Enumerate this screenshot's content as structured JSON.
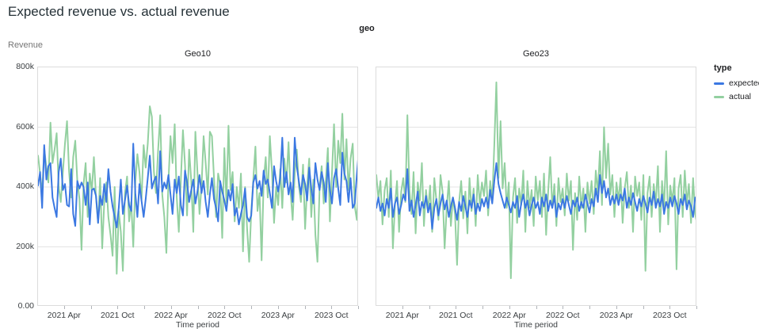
{
  "header": {
    "title": "Expected revenue vs. actual revenue"
  },
  "chart_data": {
    "type": "line",
    "title": "Expected revenue vs. actual revenue",
    "facet_field": "geo",
    "x": {
      "label": "Time period",
      "start": "2021 Jan",
      "end": "2023 Dec",
      "freq": "weekly",
      "n_points": 156,
      "tick_labels": [
        "2021 Apr",
        "2021 Oct",
        "2022 Apr",
        "2022 Oct",
        "2023 Apr",
        "2023 Oct"
      ]
    },
    "y": {
      "label": "Revenue",
      "unit": "thousands",
      "ylim": [
        0,
        800
      ],
      "tick_values": [
        0,
        200,
        400,
        600,
        800
      ],
      "tick_labels": [
        "0.00",
        "200k",
        "400k",
        "600k",
        "800k"
      ],
      "grid": true
    },
    "legend": {
      "title": "type",
      "position": "right",
      "entries": [
        {
          "label": "expected",
          "color": "#3b78e2"
        },
        {
          "label": "actual",
          "color": "#93d0a0"
        }
      ]
    },
    "facets": [
      {
        "name": "Geo10",
        "series": [
          {
            "name": "expected",
            "color": "#3b78e2",
            "values": [
              405,
              450,
              330,
              540,
              425,
              470,
              480,
              365,
              330,
              300,
              450,
              495,
              390,
              410,
              340,
              335,
              460,
              310,
              270,
              420,
              395,
              415,
              400,
              340,
              415,
              275,
              390,
              395,
              370,
              280,
              370,
              340,
              410,
              350,
              460,
              385,
              335,
              300,
              265,
              330,
              425,
              310,
              355,
              405,
              340,
              320,
              545,
              380,
              300,
              410,
              355,
              300,
              360,
              430,
              505,
              395,
              420,
              435,
              345,
              520,
              385,
              415,
              395,
              440,
              375,
              310,
              425,
              380,
              435,
              340,
              305,
              455,
              415,
              350,
              390,
              425,
              345,
              385,
              440,
              380,
              420,
              350,
              300,
              375,
              430,
              360,
              330,
              285,
              420,
              385,
              355,
              320,
              390,
              355,
              410,
              305,
              330,
              275,
              310,
              340,
              395,
              300,
              285,
              305,
              415,
              440,
              395,
              420,
              370,
              455,
              410,
              425,
              380,
              330,
              470,
              420,
              385,
              430,
              565,
              400,
              450,
              375,
              415,
              350,
              565,
              470,
              420,
              375,
              440,
              410,
              355,
              465,
              395,
              345,
              480,
              425,
              390,
              450,
              415,
              350,
              480,
              390,
              345,
              430,
              460,
              395,
              340,
              515,
              445,
              420,
              350,
              430,
              330,
              345,
              440,
              525
            ]
          },
          {
            "name": "actual",
            "color": "#93d0a0",
            "values": [
              505,
              445,
              375,
              530,
              465,
              415,
              615,
              480,
              525,
              580,
              400,
              350,
              450,
              545,
              620,
              450,
              365,
              500,
              555,
              420,
              360,
              190,
              410,
              480,
              300,
              445,
              385,
              500,
              365,
              280,
              430,
              195,
              350,
              415,
              300,
              240,
              170,
              400,
              110,
              320,
              250,
              120,
              380,
              435,
              285,
              350,
              200,
              415,
              510,
              450,
              355,
              540,
              465,
              545,
              670,
              635,
              450,
              380,
              520,
              640,
              375,
              300,
              180,
              420,
              570,
              480,
              610,
              365,
              250,
              425,
              590,
              475,
              305,
              525,
              420,
              250,
              585,
              450,
              310,
              405,
              570,
              480,
              375,
              585,
              570,
              430,
              300,
              445,
              410,
              230,
              530,
              345,
              605,
              390,
              450,
              285,
              400,
              330,
              445,
              185,
              400,
              260,
              150,
              315,
              425,
              535,
              320,
              380,
              155,
              420,
              500,
              365,
              570,
              450,
              280,
              400,
              340,
              460,
              330,
              495,
              415,
              550,
              380,
              290,
              445,
              525,
              405,
              350,
              475,
              260,
              405,
              495,
              300,
              425,
              240,
              150,
              400,
              470,
              345,
              420,
              530,
              285,
              445,
              610,
              400,
              555,
              480,
              645,
              425,
              560,
              390,
              495,
              545,
              335,
              290,
              435
            ]
          }
        ]
      },
      {
        "name": "Geo23",
        "series": [
          {
            "name": "expected",
            "color": "#3b78e2",
            "values": [
              330,
              365,
              320,
              345,
              305,
              360,
              330,
              395,
              300,
              345,
              365,
              310,
              340,
              375,
              355,
              460,
              320,
              355,
              300,
              340,
              385,
              305,
              350,
              330,
              370,
              315,
              345,
              260,
              330,
              360,
              305,
              345,
              375,
              325,
              355,
              300,
              335,
              365,
              330,
              290,
              350,
              320,
              370,
              335,
              300,
              355,
              330,
              375,
              310,
              345,
              320,
              360,
              335,
              365,
              330,
              390,
              345,
              420,
              480,
              410,
              380,
              355,
              330,
              365,
              340,
              315,
              350,
              330,
              370,
              300,
              345,
              375,
              330,
              355,
              305,
              340,
              365,
              330,
              350,
              310,
              365,
              335,
              375,
              320,
              355,
              330,
              370,
              300,
              345,
              325,
              360,
              330,
              370,
              340,
              310,
              355,
              335,
              365,
              320,
              350,
              330,
              375,
              345,
              315,
              360,
              335,
              395,
              350,
              440,
              380,
              420,
              365,
              395,
              340,
              370,
              345,
              375,
              340,
              375,
              355,
              395,
              330,
              365,
              340,
              380,
              350,
              320,
              360,
              335,
              370,
              345,
              315,
              365,
              340,
              385,
              330,
              360,
              335,
              375,
              310,
              350,
              330,
              365,
              335,
              370,
              345,
              310,
              360,
              340,
              375,
              325,
              355,
              335,
              300,
              365,
              350
            ]
          },
          {
            "name": "actual",
            "color": "#93d0a0",
            "values": [
              440,
              360,
              420,
              275,
              390,
              430,
              300,
              455,
              195,
              340,
              420,
              250,
              385,
              430,
              350,
              640,
              390,
              310,
              450,
              245,
              415,
              355,
              480,
              270,
              390,
              320,
              405,
              250,
              430,
              355,
              290,
              440,
              385,
              195,
              330,
              420,
              270,
              365,
              310,
              140,
              350,
              420,
              295,
              385,
              245,
              430,
              320,
              395,
              270,
              440,
              345,
              415,
              370,
              455,
              305,
              420,
              355,
              540,
              750,
              430,
              620,
              395,
              480,
              330,
              415,
              95,
              365,
              430,
              280,
              395,
              340,
              455,
              250,
              420,
              330,
              390,
              270,
              435,
              355,
              420,
              300,
              445,
              240,
              385,
              500,
              330,
              410,
              270,
              430,
              350,
              395,
              305,
              445,
              355,
              420,
              190,
              380,
              290,
              435,
              330,
              395,
              250,
              415,
              345,
              420,
              310,
              455,
              380,
              520,
              340,
              600,
              430,
              545,
              375,
              440,
              300,
              415,
              355,
              430,
              280,
              395,
              450,
              330,
              405,
              250,
              435,
              370,
              415,
              290,
              440,
              120,
              380,
              435,
              300,
              410,
              345,
              470,
              250,
              420,
              330,
              520,
              275,
              405,
              350,
              430,
              125,
              395,
              440,
              300,
              455,
              345,
              410,
              280,
              430,
              310,
              275
            ]
          }
        ]
      }
    ]
  }
}
